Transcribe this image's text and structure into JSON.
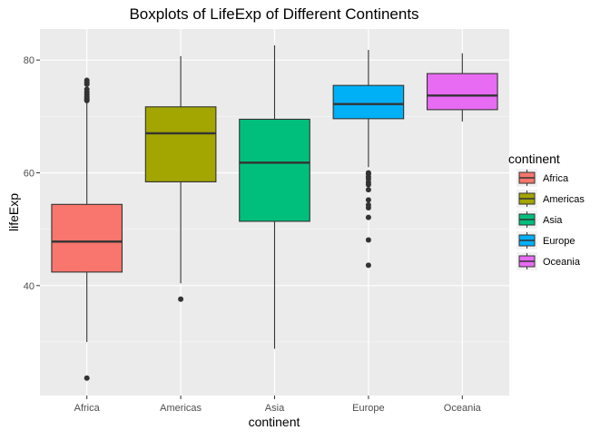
{
  "chart_data": {
    "type": "boxplot",
    "title": "Boxplots of LifeExp of Different Continents",
    "xlabel": "continent",
    "ylabel": "lifeExp",
    "ylim": [
      20.5,
      85.5
    ],
    "yticks": [
      40,
      60,
      80
    ],
    "grid": true,
    "legend_title": "continent",
    "legend_position": "right",
    "categories": [
      "Africa",
      "Americas",
      "Asia",
      "Europe",
      "Oceania"
    ],
    "series": [
      {
        "name": "Africa",
        "color": "#F8766D",
        "whisker_low": 30.0,
        "q1": 42.4,
        "median": 47.8,
        "q3": 54.4,
        "whisker_high": 72.6,
        "outliers": [
          23.6,
          72.8,
          73.0,
          73.2,
          73.5,
          73.9,
          74.3,
          74.8,
          75.7,
          76.0,
          76.4
        ]
      },
      {
        "name": "Americas",
        "color": "#A3A500",
        "whisker_low": 40.4,
        "q1": 58.4,
        "median": 67.0,
        "q3": 71.7,
        "whisker_high": 80.7,
        "outliers": [
          37.6
        ]
      },
      {
        "name": "Asia",
        "color": "#00BF7D",
        "whisker_low": 28.8,
        "q1": 51.4,
        "median": 61.8,
        "q3": 69.5,
        "whisker_high": 82.6,
        "outliers": []
      },
      {
        "name": "Europe",
        "color": "#00B0F6",
        "whisker_low": 61.0,
        "q1": 69.6,
        "median": 72.2,
        "q3": 75.5,
        "whisker_high": 81.8,
        "outliers": [
          43.6,
          48.1,
          52.1,
          53.8,
          54.3,
          55.2,
          57.0,
          57.9,
          58.3,
          58.9,
          59.3,
          59.8,
          60.0
        ]
      },
      {
        "name": "Oceania",
        "color": "#E76BF3",
        "whisker_low": 69.1,
        "q1": 71.2,
        "median": 73.7,
        "q3": 77.6,
        "whisker_high": 81.2,
        "outliers": []
      }
    ]
  }
}
